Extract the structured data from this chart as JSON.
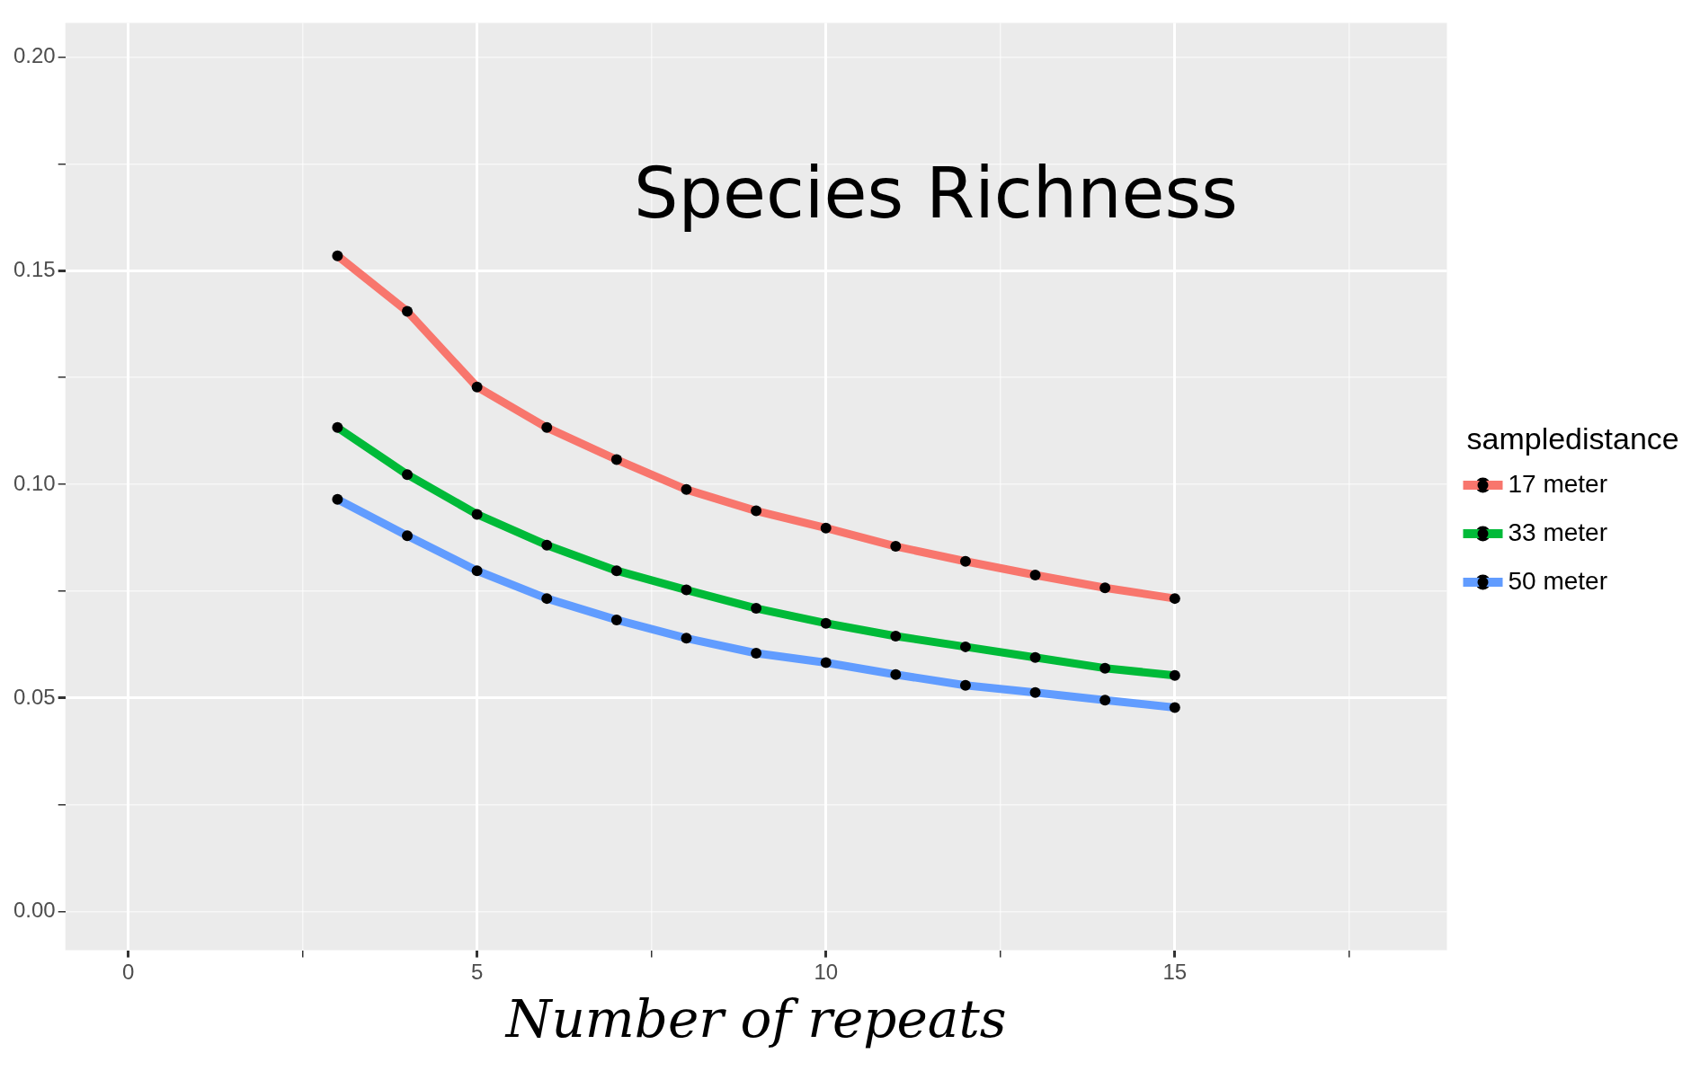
{
  "chart_data": {
    "type": "line",
    "title": "Species Richness",
    "xlabel": "Number of repeats",
    "legend_title": "sampledistance",
    "legend": "right",
    "grid": true,
    "marker": "circle",
    "line_style": "solid",
    "x": [
      3,
      4,
      5,
      6,
      7,
      8,
      9,
      10,
      11,
      12,
      13,
      14,
      15
    ],
    "xlim": [
      -0.9,
      18.9
    ],
    "xticks": [
      0,
      {
        "value": 2.5,
        "label": null
      },
      5,
      {
        "value": 7.5,
        "label": null
      },
      10,
      {
        "value": 12.5,
        "label": null
      },
      15,
      {
        "value": 17.5,
        "label": null
      }
    ],
    "ylim": [
      -0.009,
      0.208
    ],
    "yticks": [
      {
        "value": 0,
        "label": "0.00"
      },
      {
        "value": 0.025,
        "label": null
      },
      0.05,
      {
        "value": 0.075,
        "label": null
      },
      {
        "value": 0.1,
        "label": "0.10"
      },
      {
        "value": 0.125,
        "label": null
      },
      0.15,
      {
        "value": 0.175,
        "label": null
      },
      {
        "value": 0.2,
        "label": "0.20"
      }
    ],
    "series": [
      {
        "name": "17 meter",
        "color": "#f8766d",
        "values": [
          0.1535,
          0.1405,
          0.1228,
          0.1133,
          0.1058,
          0.0988,
          0.0938,
          0.0898,
          0.0855,
          0.082,
          0.0788,
          0.0758,
          0.0733
        ]
      },
      {
        "name": "33 meter",
        "color": "#00ba38",
        "values": [
          0.1133,
          0.1023,
          0.093,
          0.0858,
          0.0798,
          0.0753,
          0.071,
          0.0675,
          0.0645,
          0.062,
          0.0595,
          0.057,
          0.0553
        ]
      },
      {
        "name": "50 meter",
        "color": "#619cff",
        "values": [
          0.0965,
          0.088,
          0.0798,
          0.0733,
          0.0683,
          0.064,
          0.0605,
          0.0583,
          0.0555,
          0.053,
          0.0513,
          0.0495,
          0.0478
        ]
      }
    ]
  }
}
